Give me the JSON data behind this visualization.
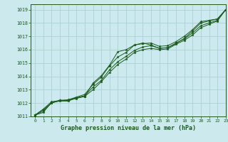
{
  "title": "Graphe pression niveau de la mer (hPa)",
  "bg_color": "#cce9ed",
  "grid_color": "#aad0d8",
  "line_color": "#1a5c1a",
  "xlim": [
    -0.5,
    23
  ],
  "ylim": [
    1011,
    1019.4
  ],
  "xticks": [
    0,
    1,
    2,
    3,
    4,
    5,
    6,
    7,
    8,
    9,
    10,
    11,
    12,
    13,
    14,
    15,
    16,
    17,
    18,
    19,
    20,
    21,
    22,
    23
  ],
  "yticks": [
    1011,
    1012,
    1013,
    1014,
    1015,
    1016,
    1017,
    1018,
    1019
  ],
  "series": [
    [
      1011.1,
      1011.55,
      1012.1,
      1012.2,
      1012.25,
      1012.45,
      1012.65,
      1013.4,
      1013.95,
      1014.8,
      1015.45,
      1015.8,
      1016.35,
      1016.45,
      1016.5,
      1016.25,
      1016.3,
      1016.6,
      1017.0,
      1017.5,
      1018.1,
      1018.2,
      1018.3,
      1019.0
    ],
    [
      1011.1,
      1011.5,
      1012.0,
      1012.2,
      1012.2,
      1012.4,
      1012.55,
      1013.2,
      1013.7,
      1014.5,
      1015.1,
      1015.5,
      1015.95,
      1016.2,
      1016.3,
      1016.1,
      1016.15,
      1016.5,
      1016.8,
      1017.25,
      1017.8,
      1018.0,
      1018.2,
      1019.0
    ],
    [
      1011.1,
      1011.4,
      1012.0,
      1012.2,
      1012.2,
      1012.35,
      1012.5,
      1013.0,
      1013.6,
      1014.3,
      1014.9,
      1015.3,
      1015.8,
      1016.0,
      1016.1,
      1016.0,
      1016.05,
      1016.4,
      1016.7,
      1017.1,
      1017.65,
      1017.9,
      1018.15,
      1019.0
    ],
    [
      1011.1,
      1011.3,
      1012.05,
      1012.15,
      1012.15,
      1012.4,
      1012.5,
      1013.5,
      1014.05,
      1014.85,
      1015.85,
      1016.0,
      1016.35,
      1016.5,
      1016.35,
      1016.1,
      1016.15,
      1016.45,
      1016.85,
      1017.4,
      1018.0,
      1018.15,
      1018.3,
      1019.0
    ]
  ]
}
